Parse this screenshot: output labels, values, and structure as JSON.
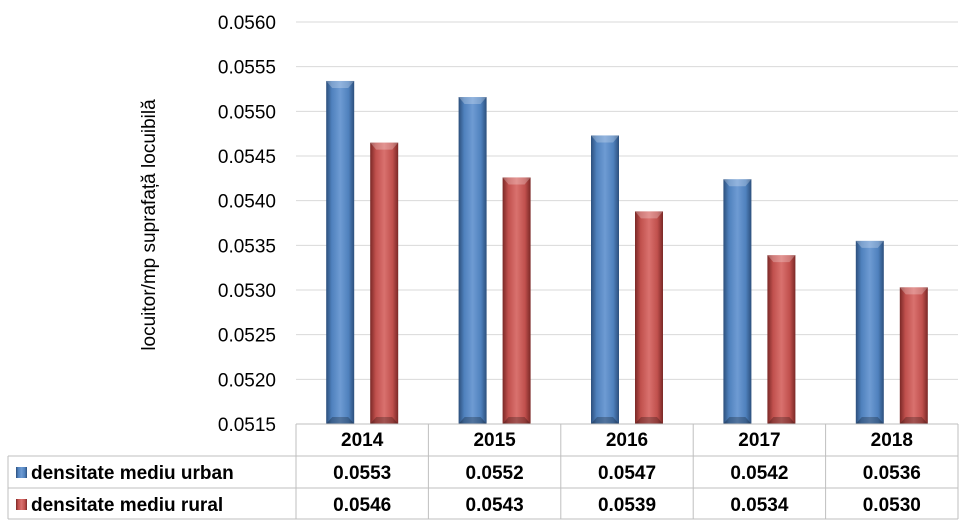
{
  "chart_data": {
    "type": "bar",
    "title": "",
    "ylabel": "locuitor/mp suprafață locuibilă",
    "xlabel": "",
    "ylim": [
      0.0515,
      0.056
    ],
    "ytick_step": 0.0005,
    "y_ticks": [
      "0.0515",
      "0.0520",
      "0.0525",
      "0.0530",
      "0.0535",
      "0.0540",
      "0.0545",
      "0.0550",
      "0.0555",
      "0.0560"
    ],
    "categories": [
      "2014",
      "2015",
      "2016",
      "2017",
      "2018"
    ],
    "grid": true,
    "legend": "data-table-left",
    "series": [
      {
        "name": "densitate mediu urban",
        "color": "#4F81BD",
        "values": [
          0.05534,
          0.05516,
          0.05473,
          0.05424,
          0.05355
        ],
        "labels": [
          "0.0553",
          "0.0552",
          "0.0547",
          "0.0542",
          "0.0536"
        ]
      },
      {
        "name": "densitate mediu rural",
        "color": "#C0504D",
        "values": [
          0.05465,
          0.05426,
          0.05388,
          0.05339,
          0.05303
        ],
        "labels": [
          "0.0546",
          "0.0543",
          "0.0539",
          "0.0534",
          "0.0530"
        ]
      }
    ]
  }
}
